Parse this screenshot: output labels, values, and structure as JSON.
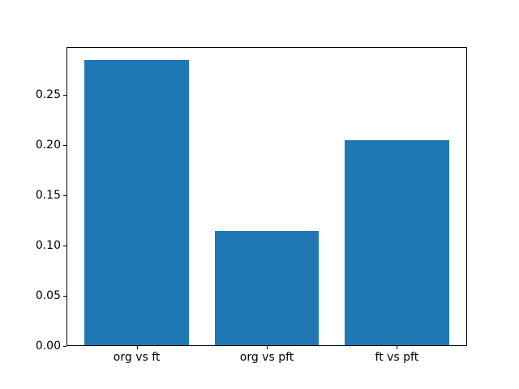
{
  "figure": {
    "background_color": "#ffffff",
    "title": ""
  },
  "chart_data": {
    "type": "bar",
    "title": "",
    "xlabel": "",
    "ylabel": "",
    "categories": [
      "org vs ft",
      "org vs pft",
      "ft vs pft"
    ],
    "values": [
      0.285,
      0.115,
      0.205
    ],
    "bar_color": "#1f77b4",
    "bar_width": 0.8,
    "xlim": [
      -0.54,
      2.54
    ],
    "ylim": [
      0,
      0.298
    ],
    "yticks": [
      0.0,
      0.05,
      0.1,
      0.15,
      0.2,
      0.25
    ],
    "ytick_labels": [
      "0.00",
      "0.05",
      "0.10",
      "0.15",
      "0.20",
      "0.25"
    ],
    "grid": false,
    "legend_position": "none",
    "axis_color": "#000000",
    "text_color": "#000000"
  }
}
